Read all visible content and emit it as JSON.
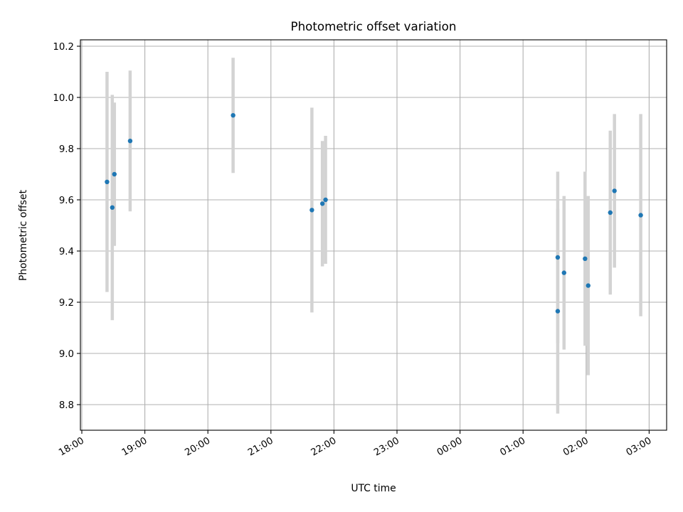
{
  "chart_data": {
    "type": "scatter",
    "title": "Photometric offset variation",
    "xlabel": "UTC time",
    "ylabel": "Photometric offset",
    "grid": true,
    "x_ticks": [
      "18:00",
      "19:00",
      "20:00",
      "21:00",
      "22:00",
      "23:00",
      "00:00",
      "01:00",
      "02:00",
      "03:00"
    ],
    "y_ticks": [
      "8.8",
      "9.0",
      "9.2",
      "9.4",
      "9.6",
      "9.8",
      "10.0",
      "10.2"
    ],
    "xlim": [
      "18:00",
      "03:25"
    ],
    "ylim": [
      8.7,
      10.23
    ],
    "colors": {
      "point": "#1f77b4",
      "errorbar": "#d3d3d3",
      "grid": "#b0b0b0"
    },
    "series": [
      {
        "points": [
          {
            "t": "18:24",
            "y": 9.67,
            "err": 0.43
          },
          {
            "t": "18:29",
            "y": 9.57,
            "err": 0.44
          },
          {
            "t": "18:31",
            "y": 9.7,
            "err": 0.28
          },
          {
            "t": "18:46",
            "y": 9.83,
            "err": 0.275
          },
          {
            "t": "20:24",
            "y": 9.93,
            "err": 0.225
          },
          {
            "t": "21:39",
            "y": 9.56,
            "err": 0.4
          },
          {
            "t": "21:49",
            "y": 9.585,
            "err": 0.245
          },
          {
            "t": "21:52",
            "y": 9.6,
            "err": 0.25
          },
          {
            "t": "01:33",
            "y": 9.375,
            "err": 0.335
          },
          {
            "t": "01:33",
            "y": 9.165,
            "err": 0.4
          },
          {
            "t": "01:39",
            "y": 9.315,
            "err": 0.3
          },
          {
            "t": "01:59",
            "y": 9.37,
            "err": 0.34
          },
          {
            "t": "02:02",
            "y": 9.265,
            "err": 0.35
          },
          {
            "t": "02:23",
            "y": 9.55,
            "err": 0.32
          },
          {
            "t": "02:27",
            "y": 9.635,
            "err": 0.3
          },
          {
            "t": "02:52",
            "y": 9.54,
            "err": 0.395
          }
        ]
      }
    ]
  }
}
